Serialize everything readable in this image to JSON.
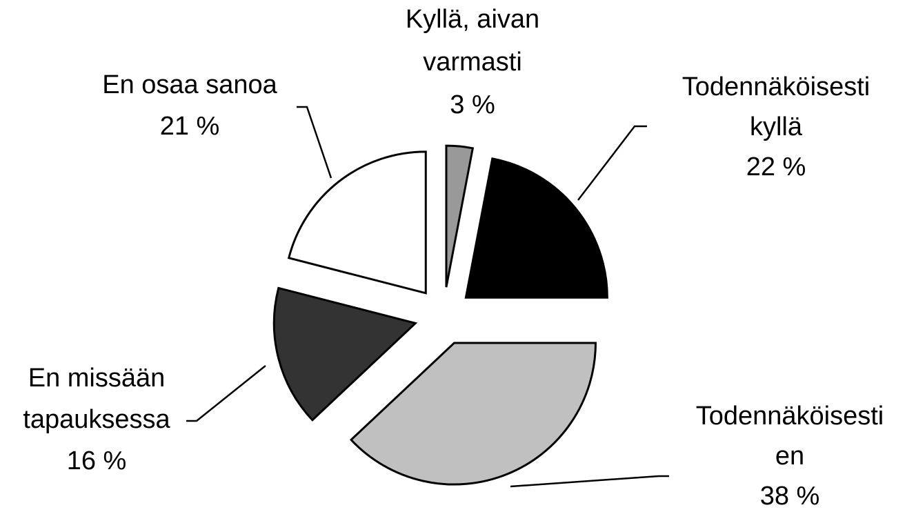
{
  "chart_data": {
    "type": "pie",
    "categories": [
      "Kyllä, aivan\nvarmasti",
      "Todennäköisesti\nkyllä",
      "Todennäköisesti\nen",
      "En missään\ntapauksessa",
      "En osaa sanoa"
    ],
    "values": [
      3,
      22,
      38,
      16,
      21
    ],
    "value_labels": [
      "3 %",
      "22 %",
      "38 %",
      "16 %",
      "21 %"
    ],
    "colors": [
      "#999999",
      "#000000",
      "#c0c0c0",
      "#333333",
      "#ffffff"
    ]
  }
}
